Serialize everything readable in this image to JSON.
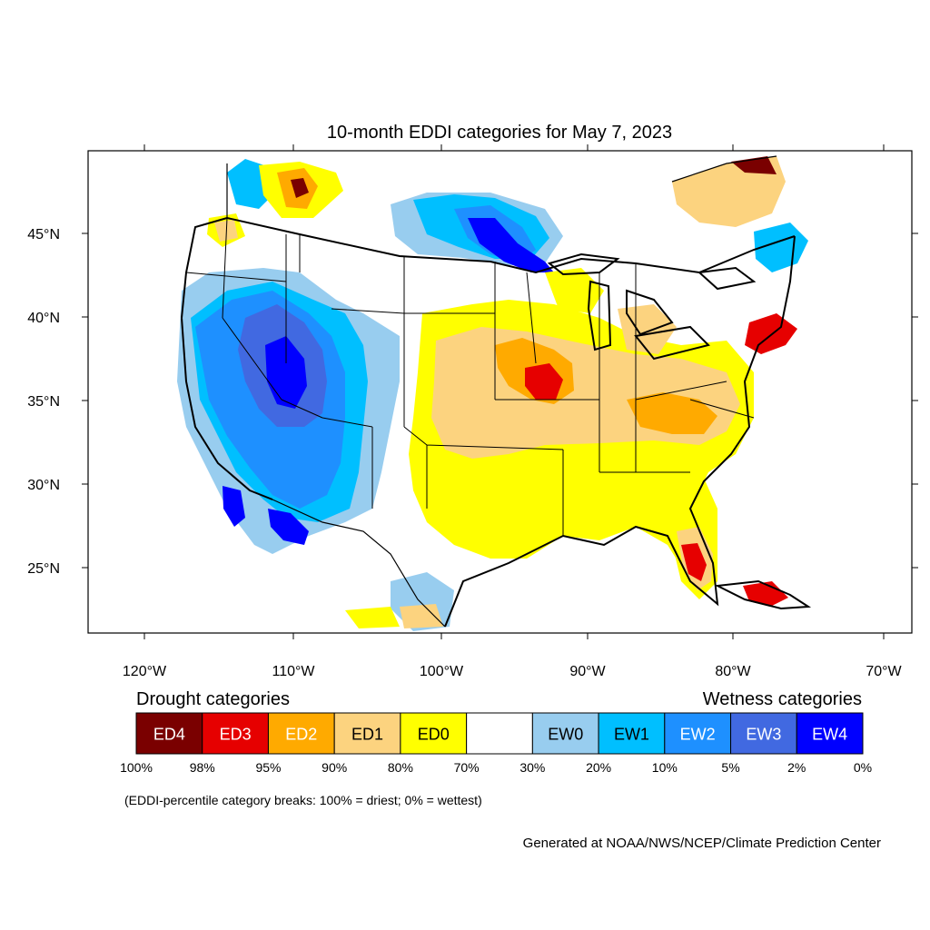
{
  "title": "10-month EDDI categories for May 7, 2023",
  "map": {
    "lat_ticks": [
      "45°N",
      "40°N",
      "35°N",
      "30°N",
      "25°N"
    ],
    "lon_ticks": [
      "120°W",
      "110°W",
      "100°W",
      "90°W",
      "80°W",
      "70°W"
    ],
    "regions": [
      {
        "category": "EW3",
        "area": "Great Basin / Nevada"
      },
      {
        "category": "EW4",
        "area": "Southern Nevada / Utah"
      },
      {
        "category": "EW2",
        "area": "California / Arizona"
      },
      {
        "category": "EW4",
        "area": "Northern Minnesota / Lake Superior"
      },
      {
        "category": "EW4",
        "area": "Sonora / Southern Arizona"
      },
      {
        "category": "ED1",
        "area": "Central Plains / Midwest"
      },
      {
        "category": "ED0",
        "area": "Southern Plains / Texas"
      },
      {
        "category": "ED3",
        "area": "Iowa / Missouri"
      },
      {
        "category": "ED3",
        "area": "Southern New England"
      },
      {
        "category": "ED3",
        "area": "Southwest Florida"
      },
      {
        "category": "ED4",
        "area": "Quebec"
      },
      {
        "category": "ED2",
        "area": "Idaho / Montana"
      }
    ]
  },
  "legend": {
    "drought_heading": "Drought categories",
    "wetness_heading": "Wetness categories",
    "categories": [
      {
        "label": "ED4",
        "color": "#7a0000",
        "text_color": "#ffffff"
      },
      {
        "label": "ED3",
        "color": "#e60000",
        "text_color": "#ffffff"
      },
      {
        "label": "ED2",
        "color": "#ffaa00",
        "text_color": "#ffffff"
      },
      {
        "label": "ED1",
        "color": "#fcd37f",
        "text_color": "#000000"
      },
      {
        "label": "ED0",
        "color": "#ffff00",
        "text_color": "#000000"
      },
      {
        "label": "",
        "color": "#ffffff",
        "text_color": "#000000"
      },
      {
        "label": "EW0",
        "color": "#98cdef",
        "text_color": "#000000"
      },
      {
        "label": "EW1",
        "color": "#00bfff",
        "text_color": "#000000"
      },
      {
        "label": "EW2",
        "color": "#1e90ff",
        "text_color": "#ffffff"
      },
      {
        "label": "EW3",
        "color": "#4169e1",
        "text_color": "#ffffff"
      },
      {
        "label": "EW4",
        "color": "#0000ff",
        "text_color": "#ffffff"
      }
    ],
    "breaks": [
      "100%",
      "98%",
      "95%",
      "90%",
      "80%",
      "70%",
      "30%",
      "20%",
      "10%",
      "5%",
      "2%",
      "0%"
    ]
  },
  "note": "(EDDI-percentile category breaks: 100% = driest; 0% = wettest)",
  "credit": "Generated at NOAA/NWS/NCEP/Climate Prediction Center"
}
